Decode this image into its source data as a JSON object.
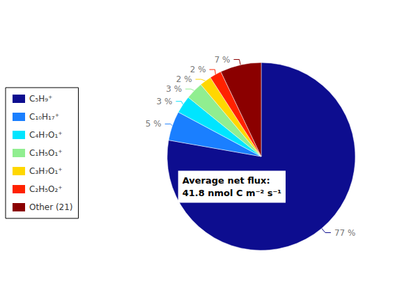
{
  "chart_data": {
    "type": "pie",
    "categories": [
      "C₅H₉⁺",
      "C₁₀H₁₇⁺",
      "C₄H₇O₁⁺",
      "C₁H₅O₁⁺",
      "C₃H₇O₁⁺",
      "C₂H₅O₂⁺",
      "Other (21)"
    ],
    "values": [
      77,
      5,
      3,
      3,
      2,
      2,
      7
    ],
    "value_labels": [
      "77 %",
      "5 %",
      "3 %",
      "3 %",
      "2 %",
      "2 %",
      "7 %"
    ],
    "colors": [
      "#0d0d8f",
      "#1a7fff",
      "#00e5ff",
      "#90ee90",
      "#ffd700",
      "#ff2200",
      "#8b0000"
    ],
    "annotation": "Average net flux:\n41.8 nmol C m⁻² s⁻¹",
    "data_labels": true,
    "legend": "left"
  }
}
